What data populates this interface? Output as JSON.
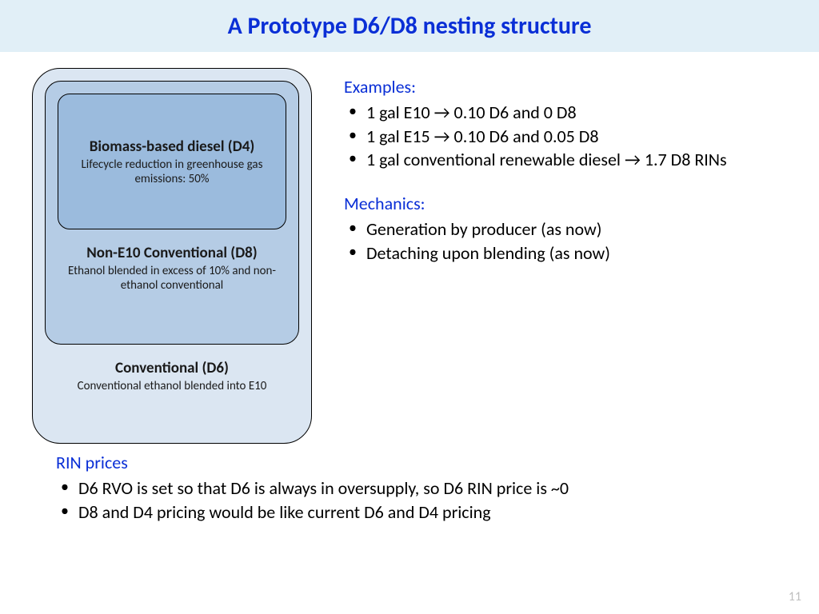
{
  "title": "A Prototype D6/D8 nesting structure",
  "diagram": {
    "outer": {
      "title": "Conventional (D6)",
      "subtitle": "Conventional ethanol blended into E10",
      "bg": "#dbe6f2",
      "radius": 35
    },
    "middle": {
      "title": "Non-E10 Conventional (D8)",
      "subtitle": "Ethanol blended in excess of 10% and non-ethanol conventional",
      "bg": "#b5cce5",
      "radius": 20
    },
    "inner": {
      "title": "Biomass-based diesel (D4)",
      "subtitle": "Lifecycle reduction in greenhouse gas emissions: 50%",
      "bg": "#9bbbdd",
      "radius": 15
    },
    "border_color": "#000000"
  },
  "sections": {
    "examples": {
      "heading": "Examples:",
      "items": [
        "1 gal E10 → 0.10 D6 and 0 D8",
        "1 gal E15 → 0.10 D6 and 0.05 D8",
        "1 gal conventional renewable diesel → 1.7 D8 RINs"
      ]
    },
    "mechanics": {
      "heading": "Mechanics:",
      "items": [
        "Generation by producer (as now)",
        "Detaching upon blending (as now)"
      ]
    },
    "rin_prices": {
      "heading": "RIN prices",
      "items": [
        "D6 RVO is set so that D6 is always in oversupply, so D6 RIN price is ~0",
        "D8 and D4 pricing would be like current D6 and D4 pricing"
      ]
    }
  },
  "page_number": "11",
  "colors": {
    "title_bg": "#e1eff7",
    "title_fg": "#0a2fd6",
    "heading_fg": "#0a2fd6",
    "body_fg": "#000000",
    "pagenum_fg": "#bfbfbf"
  }
}
